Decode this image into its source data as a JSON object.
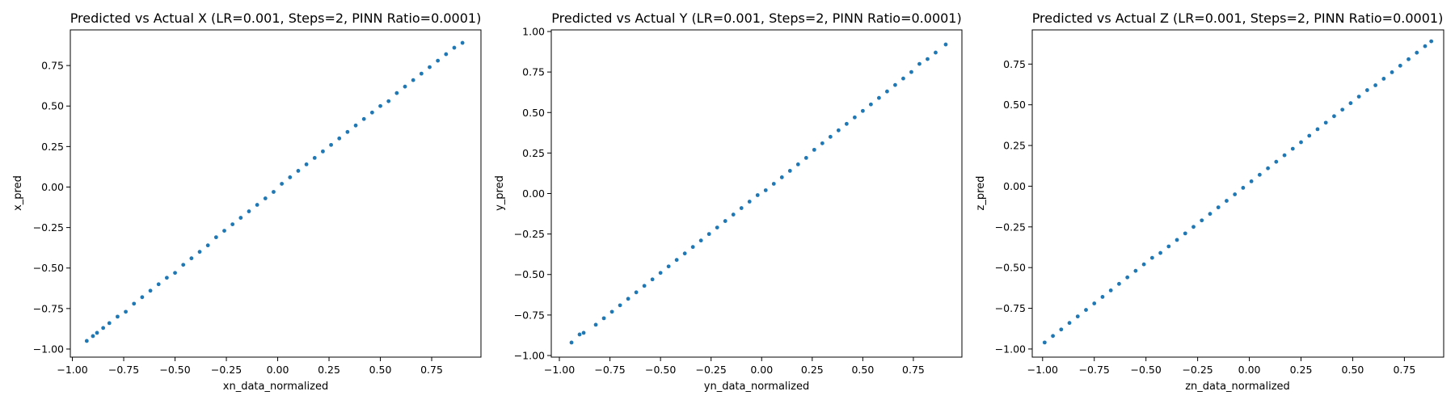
{
  "figure": {
    "background": "#ffffff",
    "point_color": "#1f77b4"
  },
  "chart_data": [
    {
      "type": "scatter",
      "title": "Predicted vs Actual X (LR=0.001, Steps=2, PINN Ratio=0.0001)",
      "xlabel": "xn_data_normalized",
      "ylabel": "x_pred",
      "xlim": [
        -1.01,
        0.99
      ],
      "ylim": [
        -1.05,
        0.97
      ],
      "xticks": [
        -1.0,
        -0.75,
        -0.5,
        -0.25,
        0.0,
        0.25,
        0.5,
        0.75
      ],
      "xtick_labels": [
        "−1.00",
        "−0.75",
        "−0.50",
        "−0.25",
        "0.00",
        "0.25",
        "0.50",
        "0.75"
      ],
      "yticks": [
        -1.0,
        -0.75,
        -0.5,
        -0.25,
        0.0,
        0.25,
        0.5,
        0.75
      ],
      "ytick_labels": [
        "−1.00",
        "−0.75",
        "−0.50",
        "−0.25",
        "0.00",
        "0.25",
        "0.50",
        "0.75"
      ],
      "grid": false,
      "legend": "none",
      "series": [
        {
          "points": [
            [
              -0.93,
              -0.95
            ],
            [
              -0.9,
              -0.92
            ],
            [
              -0.88,
              -0.9
            ],
            [
              -0.85,
              -0.87
            ],
            [
              -0.82,
              -0.84
            ],
            [
              -0.78,
              -0.8
            ],
            [
              -0.74,
              -0.77
            ],
            [
              -0.7,
              -0.72
            ],
            [
              -0.66,
              -0.68
            ],
            [
              -0.62,
              -0.64
            ],
            [
              -0.58,
              -0.6
            ],
            [
              -0.54,
              -0.56
            ],
            [
              -0.5,
              -0.53
            ],
            [
              -0.46,
              -0.48
            ],
            [
              -0.42,
              -0.44
            ],
            [
              -0.38,
              -0.4
            ],
            [
              -0.34,
              -0.36
            ],
            [
              -0.3,
              -0.31
            ],
            [
              -0.26,
              -0.27
            ],
            [
              -0.22,
              -0.23
            ],
            [
              -0.18,
              -0.19
            ],
            [
              -0.14,
              -0.15
            ],
            [
              -0.1,
              -0.11
            ],
            [
              -0.06,
              -0.07
            ],
            [
              -0.02,
              -0.03
            ],
            [
              0.02,
              0.02
            ],
            [
              0.06,
              0.06
            ],
            [
              0.1,
              0.1
            ],
            [
              0.14,
              0.14
            ],
            [
              0.18,
              0.18
            ],
            [
              0.22,
              0.22
            ],
            [
              0.26,
              0.26
            ],
            [
              0.3,
              0.3
            ],
            [
              0.34,
              0.34
            ],
            [
              0.38,
              0.38
            ],
            [
              0.42,
              0.42
            ],
            [
              0.46,
              0.46
            ],
            [
              0.5,
              0.5
            ],
            [
              0.54,
              0.53
            ],
            [
              0.58,
              0.58
            ],
            [
              0.62,
              0.62
            ],
            [
              0.66,
              0.66
            ],
            [
              0.7,
              0.7
            ],
            [
              0.74,
              0.74
            ],
            [
              0.78,
              0.78
            ],
            [
              0.82,
              0.82
            ],
            [
              0.86,
              0.86
            ],
            [
              0.9,
              0.89
            ]
          ]
        }
      ]
    },
    {
      "type": "scatter",
      "title": "Predicted vs Actual Y (LR=0.001, Steps=2, PINN Ratio=0.0001)",
      "xlabel": "yn_data_normalized",
      "ylabel": "y_pred",
      "xlim": [
        -1.04,
        0.99
      ],
      "ylim": [
        -1.01,
        1.01
      ],
      "xticks": [
        -1.0,
        -0.75,
        -0.5,
        -0.25,
        0.0,
        0.25,
        0.5,
        0.75
      ],
      "xtick_labels": [
        "−1.00",
        "−0.75",
        "−0.50",
        "−0.25",
        "0.00",
        "0.25",
        "0.50",
        "0.75"
      ],
      "yticks": [
        -1.0,
        -0.75,
        -0.5,
        -0.25,
        0.0,
        0.25,
        0.5,
        0.75,
        1.0
      ],
      "ytick_labels": [
        "−1.00",
        "−0.75",
        "−0.50",
        "−0.25",
        "0.00",
        "0.25",
        "0.50",
        "0.75",
        "1.00"
      ],
      "grid": false,
      "legend": "none",
      "series": [
        {
          "points": [
            [
              -0.94,
              -0.92
            ],
            [
              -0.9,
              -0.87
            ],
            [
              -0.88,
              -0.86
            ],
            [
              -0.82,
              -0.81
            ],
            [
              -0.78,
              -0.77
            ],
            [
              -0.74,
              -0.73
            ],
            [
              -0.7,
              -0.69
            ],
            [
              -0.66,
              -0.65
            ],
            [
              -0.62,
              -0.61
            ],
            [
              -0.58,
              -0.57
            ],
            [
              -0.54,
              -0.53
            ],
            [
              -0.5,
              -0.49
            ],
            [
              -0.46,
              -0.45
            ],
            [
              -0.42,
              -0.41
            ],
            [
              -0.38,
              -0.37
            ],
            [
              -0.34,
              -0.33
            ],
            [
              -0.3,
              -0.29
            ],
            [
              -0.26,
              -0.25
            ],
            [
              -0.22,
              -0.21
            ],
            [
              -0.18,
              -0.17
            ],
            [
              -0.14,
              -0.13
            ],
            [
              -0.1,
              -0.09
            ],
            [
              -0.06,
              -0.05
            ],
            [
              -0.02,
              -0.01
            ],
            [
              0.02,
              0.02
            ],
            [
              0.06,
              0.06
            ],
            [
              0.1,
              0.1
            ],
            [
              0.14,
              0.14
            ],
            [
              0.18,
              0.18
            ],
            [
              0.22,
              0.22
            ],
            [
              0.26,
              0.27
            ],
            [
              0.3,
              0.31
            ],
            [
              0.34,
              0.35
            ],
            [
              0.38,
              0.39
            ],
            [
              0.42,
              0.43
            ],
            [
              0.46,
              0.47
            ],
            [
              0.5,
              0.51
            ],
            [
              0.54,
              0.55
            ],
            [
              0.58,
              0.59
            ],
            [
              0.62,
              0.63
            ],
            [
              0.66,
              0.67
            ],
            [
              0.7,
              0.71
            ],
            [
              0.74,
              0.75
            ],
            [
              0.78,
              0.8
            ],
            [
              0.82,
              0.83
            ],
            [
              0.86,
              0.87
            ],
            [
              0.91,
              0.92
            ]
          ]
        }
      ]
    },
    {
      "type": "scatter",
      "title": "Predicted vs Actual Z (LR=0.001, Steps=2, PINN Ratio=0.0001)",
      "xlabel": "zn_data_normalized",
      "ylabel": "z_pred",
      "xlim": [
        -1.05,
        0.94
      ],
      "ylim": [
        -1.05,
        0.96
      ],
      "xticks": [
        -1.0,
        -0.75,
        -0.5,
        -0.25,
        0.0,
        0.25,
        0.5,
        0.75
      ],
      "xtick_labels": [
        "−1.00",
        "−0.75",
        "−0.50",
        "−0.25",
        "0.00",
        "0.25",
        "0.50",
        "0.75"
      ],
      "yticks": [
        -1.0,
        -0.75,
        -0.5,
        -0.25,
        0.0,
        0.25,
        0.5,
        0.75
      ],
      "ytick_labels": [
        "−1.00",
        "−0.75",
        "−0.50",
        "−0.25",
        "0.00",
        "0.25",
        "0.50",
        "0.75"
      ],
      "grid": false,
      "legend": "none",
      "series": [
        {
          "points": [
            [
              -0.99,
              -0.96
            ],
            [
              -0.95,
              -0.92
            ],
            [
              -0.91,
              -0.88
            ],
            [
              -0.87,
              -0.84
            ],
            [
              -0.83,
              -0.8
            ],
            [
              -0.79,
              -0.76
            ],
            [
              -0.75,
              -0.72
            ],
            [
              -0.71,
              -0.68
            ],
            [
              -0.67,
              -0.64
            ],
            [
              -0.63,
              -0.6
            ],
            [
              -0.59,
              -0.56
            ],
            [
              -0.55,
              -0.52
            ],
            [
              -0.51,
              -0.48
            ],
            [
              -0.47,
              -0.44
            ],
            [
              -0.43,
              -0.41
            ],
            [
              -0.39,
              -0.37
            ],
            [
              -0.35,
              -0.33
            ],
            [
              -0.31,
              -0.29
            ],
            [
              -0.27,
              -0.25
            ],
            [
              -0.23,
              -0.21
            ],
            [
              -0.19,
              -0.17
            ],
            [
              -0.15,
              -0.13
            ],
            [
              -0.11,
              -0.09
            ],
            [
              -0.07,
              -0.05
            ],
            [
              -0.03,
              -0.01
            ],
            [
              0.01,
              0.03
            ],
            [
              0.05,
              0.07
            ],
            [
              0.09,
              0.11
            ],
            [
              0.13,
              0.15
            ],
            [
              0.17,
              0.19
            ],
            [
              0.21,
              0.23
            ],
            [
              0.25,
              0.27
            ],
            [
              0.29,
              0.31
            ],
            [
              0.33,
              0.35
            ],
            [
              0.37,
              0.39
            ],
            [
              0.41,
              0.43
            ],
            [
              0.45,
              0.47
            ],
            [
              0.49,
              0.51
            ],
            [
              0.53,
              0.55
            ],
            [
              0.57,
              0.59
            ],
            [
              0.61,
              0.62
            ],
            [
              0.65,
              0.66
            ],
            [
              0.69,
              0.7
            ],
            [
              0.73,
              0.74
            ],
            [
              0.77,
              0.78
            ],
            [
              0.81,
              0.82
            ],
            [
              0.85,
              0.86
            ],
            [
              0.88,
              0.89
            ]
          ]
        }
      ]
    }
  ]
}
